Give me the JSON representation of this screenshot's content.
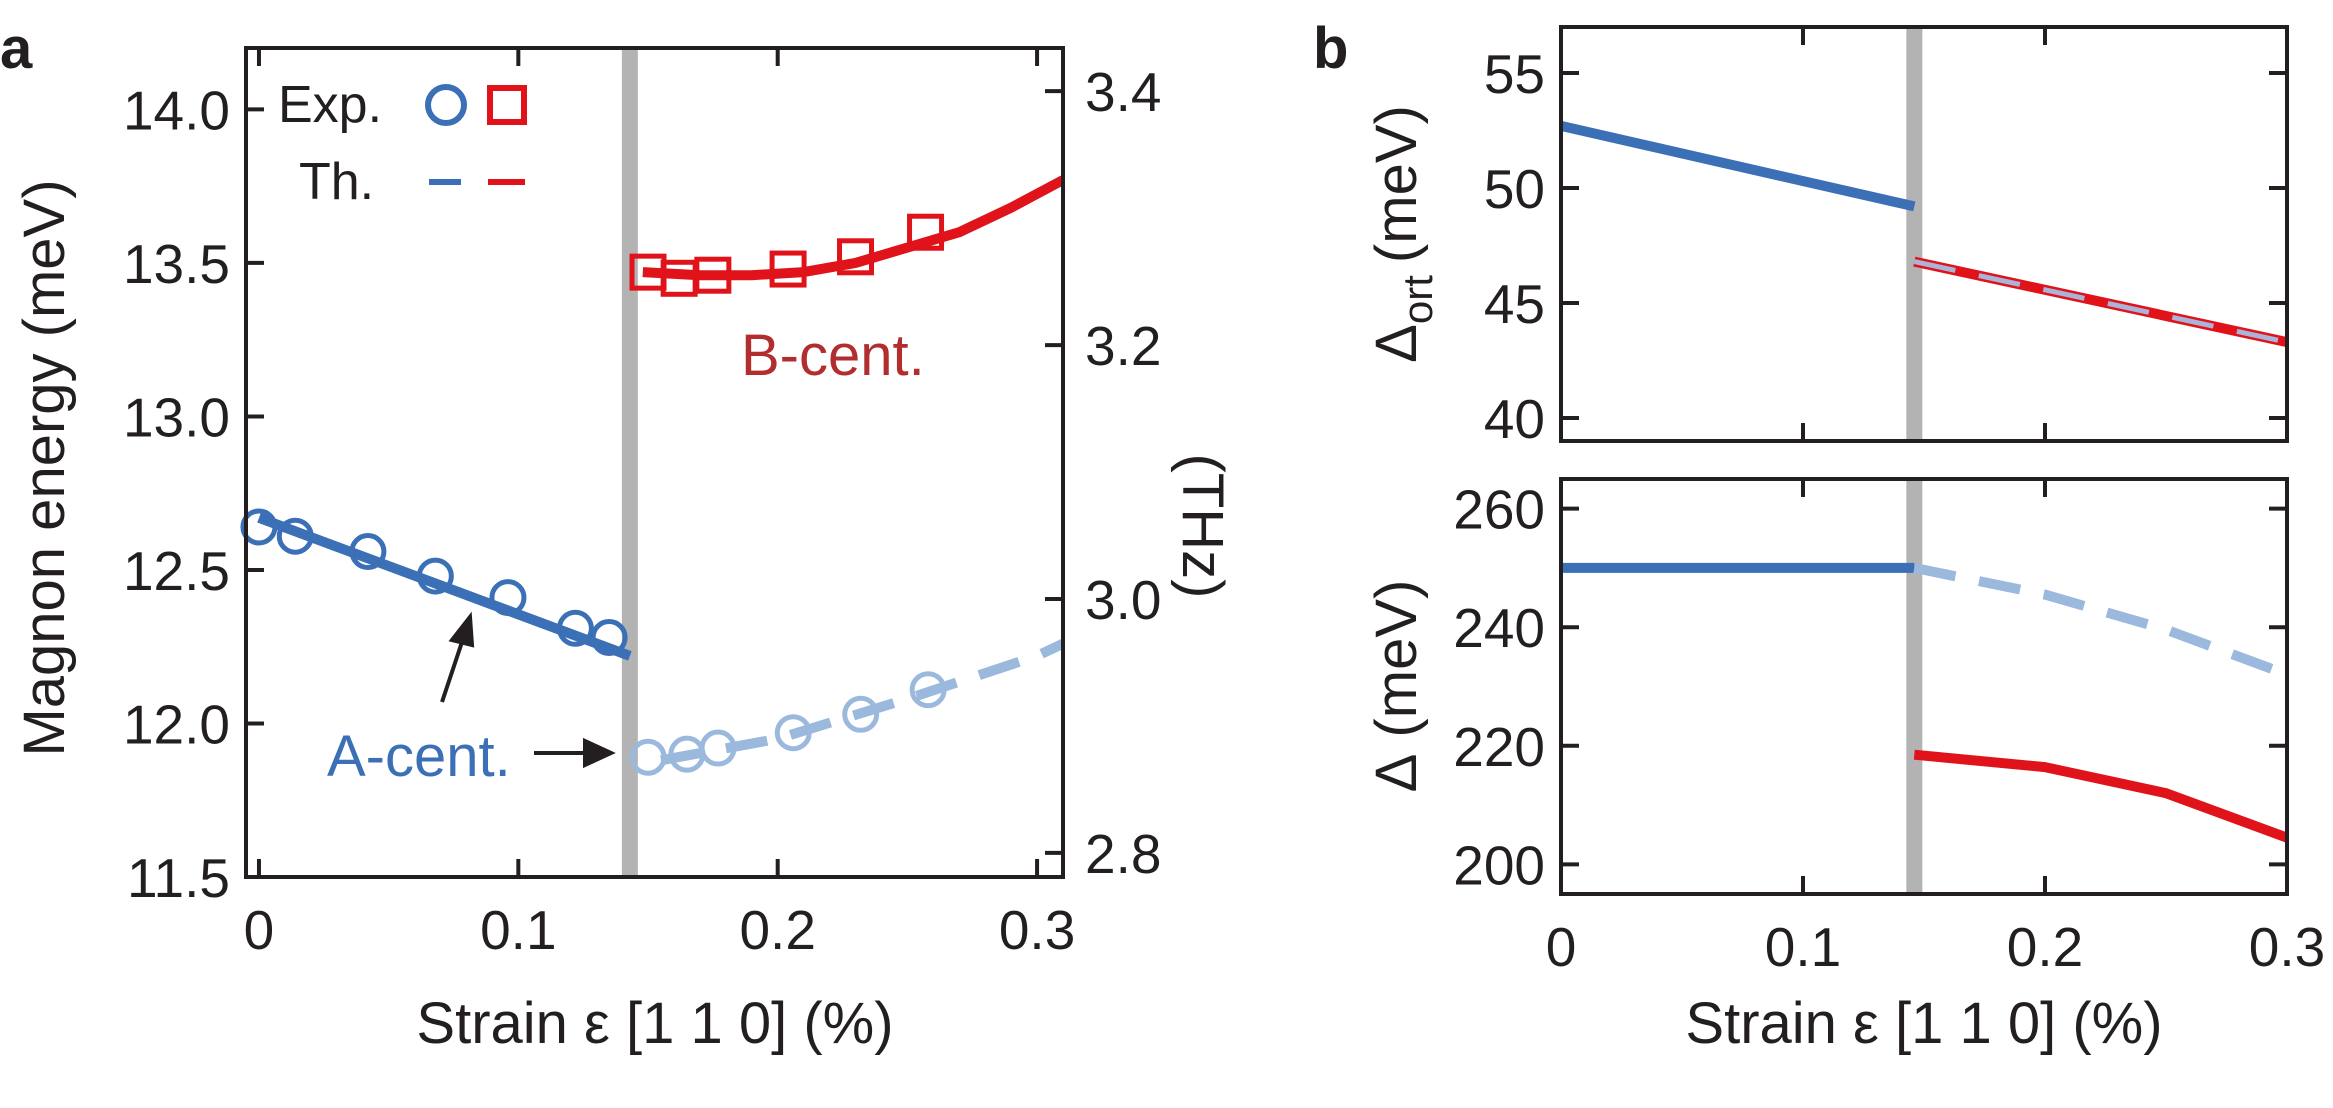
{
  "colors": {
    "a_phase": "#3b6fb6",
    "a_phase_light": "#9bb8dd",
    "b_phase": "#e0131b",
    "b_label": "#b22e2e",
    "boundary": "#b3b3b3",
    "axis": "#231f20",
    "dashed_overlay": "#a9b4d8"
  },
  "chart_data": [
    {
      "panel_label": "a",
      "type": "scatter",
      "xlabel": "Strain ε [1 1 0] (%)",
      "ylabel": "Magnon energy (meV)",
      "y2label": "(THz)",
      "xlim": [
        -0.005,
        0.31
      ],
      "ylim": [
        11.5,
        14.2
      ],
      "y2lim": [
        2.781,
        3.434
      ],
      "x_ticks": [
        "0",
        "0.1",
        "0.2",
        "0.3"
      ],
      "y_ticks": [
        "11.5",
        "12.0",
        "12.5",
        "13.0",
        "13.5",
        "14.0"
      ],
      "y2_ticks": [
        "2.8",
        "3.0",
        "3.2",
        "3.4"
      ],
      "phase_boundary_x": 0.143,
      "legend": {
        "exp_label": "Exp.",
        "th_label": "Th."
      },
      "annotations": {
        "a_cent": "A-cent.",
        "b_cent": "B-cent."
      },
      "series": [
        {
          "name": "A-cent. Exp.",
          "marker": "circle",
          "color": "#3b6fb6",
          "points": [
            [
              0.0,
              12.64
            ],
            [
              0.014,
              12.61
            ],
            [
              0.042,
              12.56
            ],
            [
              0.068,
              12.48
            ],
            [
              0.096,
              12.41
            ],
            [
              0.122,
              12.31
            ],
            [
              0.135,
              12.28
            ]
          ]
        },
        {
          "name": "A-cent. Exp. (above boundary)",
          "marker": "circle",
          "color": "#9bb8dd",
          "points": [
            [
              0.15,
              11.89
            ],
            [
              0.165,
              11.9
            ],
            [
              0.177,
              11.92
            ],
            [
              0.206,
              11.97
            ],
            [
              0.232,
              12.03
            ],
            [
              0.258,
              12.11
            ]
          ]
        },
        {
          "name": "B-cent. Exp.",
          "marker": "square",
          "color": "#e0131b",
          "points": [
            [
              0.15,
              13.47
            ],
            [
              0.162,
              13.45
            ],
            [
              0.175,
              13.46
            ],
            [
              0.204,
              13.48
            ],
            [
              0.23,
              13.52
            ],
            [
              0.257,
              13.6
            ]
          ]
        },
        {
          "name": "A-cent. Th.",
          "line": "solid",
          "color": "#3b6fb6",
          "points": [
            [
              0.0,
              12.67
            ],
            [
              0.143,
              12.22
            ]
          ]
        },
        {
          "name": "A-cent. Th. (above boundary)",
          "line": "dashed",
          "color": "#9bb8dd",
          "points": [
            [
              0.155,
              11.88
            ],
            [
              0.2,
              11.95
            ],
            [
              0.25,
              12.08
            ],
            [
              0.3,
              12.22
            ],
            [
              0.31,
              12.26
            ]
          ]
        },
        {
          "name": "B-cent. Th.",
          "line": "solid",
          "color": "#e0131b",
          "points": [
            [
              0.148,
              13.47
            ],
            [
              0.17,
              13.46
            ],
            [
              0.19,
              13.46
            ],
            [
              0.21,
              13.47
            ],
            [
              0.23,
              13.5
            ],
            [
              0.25,
              13.55
            ],
            [
              0.27,
              13.6
            ],
            [
              0.29,
              13.68
            ],
            [
              0.31,
              13.77
            ]
          ]
        }
      ]
    },
    {
      "panel_label": "b",
      "type": "line",
      "ylabel": "Δ",
      "ylabel_sub": "ort",
      "ylabel_unit": "(meV)",
      "xlim": [
        0,
        0.3
      ],
      "ylim": [
        39,
        57
      ],
      "y_ticks": [
        "40",
        "45",
        "50",
        "55"
      ],
      "phase_boundary_x": 0.146,
      "series": [
        {
          "name": "A-cent.",
          "line": "solid",
          "color": "#3b6fb6",
          "points": [
            [
              0.0,
              52.7
            ],
            [
              0.146,
              49.2
            ]
          ]
        },
        {
          "name": "B-cent.",
          "line": "solid",
          "color": "#e0131b",
          "points": [
            [
              0.146,
              46.8
            ],
            [
              0.3,
              43.3
            ]
          ]
        },
        {
          "name": "B-cent. overlay",
          "line": "dashed",
          "color": "#a9b4d8",
          "points": [
            [
              0.146,
              46.8
            ],
            [
              0.3,
              43.3
            ]
          ]
        }
      ]
    },
    {
      "type": "line",
      "xlabel": "Strain ε [1 1 0] (%)",
      "ylabel": "Δ",
      "ylabel_unit": "(meV)",
      "xlim": [
        0,
        0.3
      ],
      "ylim": [
        195,
        265
      ],
      "x_ticks": [
        "0",
        "0.1",
        "0.2",
        "0.3"
      ],
      "y_ticks": [
        "200",
        "220",
        "240",
        "260"
      ],
      "phase_boundary_x": 0.146,
      "series": [
        {
          "name": "A-cent.",
          "line": "solid",
          "color": "#3b6fb6",
          "points": [
            [
              0.0,
              250
            ],
            [
              0.146,
              250
            ]
          ]
        },
        {
          "name": "A-cent. (above boundary)",
          "line": "dashed",
          "color": "#9bb8dd",
          "points": [
            [
              0.146,
              250
            ],
            [
              0.2,
              245.5
            ],
            [
              0.25,
              239.6
            ],
            [
              0.3,
              232
            ]
          ]
        },
        {
          "name": "B-cent.",
          "line": "solid",
          "color": "#e0131b",
          "points": [
            [
              0.146,
              218.5
            ],
            [
              0.2,
              216.4
            ],
            [
              0.25,
              212
            ],
            [
              0.3,
              204.5
            ]
          ]
        }
      ]
    }
  ]
}
